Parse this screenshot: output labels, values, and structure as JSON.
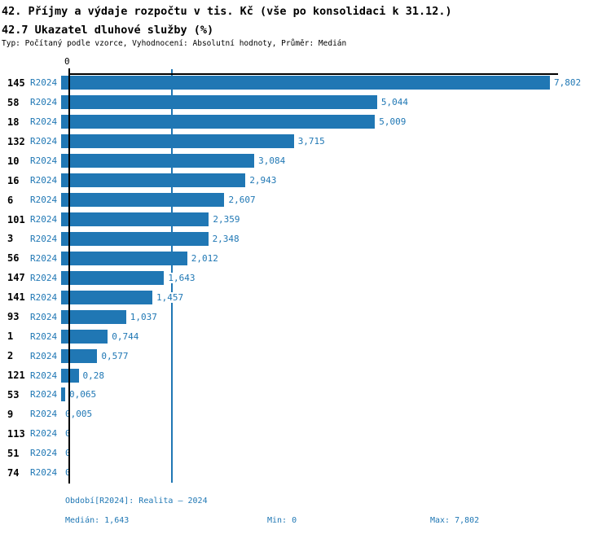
{
  "header": {
    "title_line1": "42. Příjmy a výdaje rozpočtu v tis. Kč (vše po konsolidaci k 31.12.)",
    "title_line2": "42.7 Ukazatel dluhové služby (%)",
    "subtitle": "Typ: Počítaný podle vzorce, Vyhodnocení: Absolutní hodnoty, Průměr: Medián"
  },
  "chart_data": {
    "type": "bar",
    "orientation": "horizontal",
    "title": "42.7 Ukazatel dluhové služby (%)",
    "categories": [
      "145",
      "58",
      "18",
      "132",
      "10",
      "16",
      "6",
      "101",
      "3",
      "56",
      "147",
      "141",
      "93",
      "1",
      "2",
      "121",
      "53",
      "9",
      "113",
      "51",
      "74"
    ],
    "period_label": "R2024",
    "values": [
      7.802,
      5.044,
      5.009,
      3.715,
      3.084,
      2.943,
      2.607,
      2.359,
      2.348,
      2.012,
      1.643,
      1.457,
      1.037,
      0.744,
      0.577,
      0.28,
      0.065,
      0.005,
      0,
      0,
      0
    ],
    "value_labels": [
      "7,802",
      "5,044",
      "5,009",
      "3,715",
      "3,084",
      "2,943",
      "2,607",
      "2,359",
      "2,348",
      "2,012",
      "1,643",
      "1,457",
      "1,037",
      "0,744",
      "0,577",
      "0,28",
      "0,065",
      "0,005",
      "0",
      "0",
      "0"
    ],
    "xlim": [
      0,
      7.802
    ],
    "x_axis_zero_label": "0",
    "median_value": 1.643,
    "grid": false,
    "legend": "none",
    "bar_color": "#2077b4",
    "text_blue": "#1f77b4",
    "axis_color": "#000000"
  },
  "footer": {
    "period_line": "Období[R2024]: Realita – 2024",
    "median_label": "Medián: 1,643",
    "min_label": "Min: 0",
    "max_label": "Max: 7,802"
  }
}
